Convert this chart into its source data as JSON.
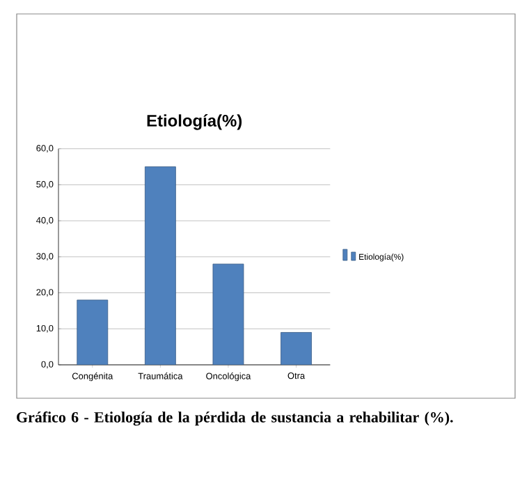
{
  "chart_data": {
    "type": "bar",
    "title": "Etiología(%)",
    "categories": [
      "Congénita",
      "Traumática",
      "Oncológica",
      "Otra"
    ],
    "series": [
      {
        "name": "Etiología(%)",
        "color": "#4f81bd",
        "values": [
          18,
          55,
          28,
          9
        ]
      }
    ],
    "ylim": [
      0,
      60
    ],
    "yticks": [
      {
        "value": 0,
        "label": "0,0"
      },
      {
        "value": 10,
        "label": "10,0"
      },
      {
        "value": 20,
        "label": "20,0"
      },
      {
        "value": 30,
        "label": "30,0"
      },
      {
        "value": 40,
        "label": "40,0"
      },
      {
        "value": 50,
        "label": "50,0"
      },
      {
        "value": 60,
        "label": "60,0"
      }
    ],
    "grid": "y",
    "legend": "right",
    "annotations": [
      "Gráfico 6 - Etiología de la pérdida de sustancia a rehabilitar (%)."
    ]
  }
}
